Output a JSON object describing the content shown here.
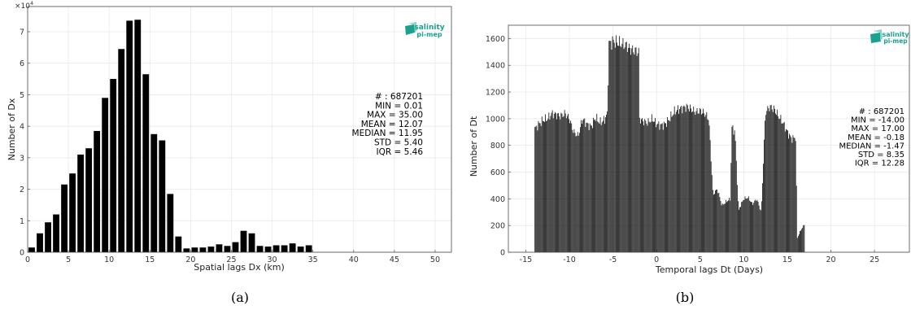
{
  "chart_data": [
    {
      "type": "bar",
      "panel_caption": "(a)",
      "xlabel": "Spatial lags Dx (km)",
      "ylabel": "Number of Dx",
      "y_multiplier": "×10",
      "y_multiplier_exp": "4",
      "xlim": [
        0,
        52
      ],
      "ylim": [
        0,
        7.8
      ],
      "grid": true,
      "xticks": [
        0,
        5,
        10,
        15,
        20,
        25,
        30,
        35,
        40,
        45,
        50
      ],
      "yticks": [
        0,
        1,
        2,
        3,
        4,
        5,
        6,
        7
      ],
      "x": [
        0.5,
        1.5,
        2.5,
        3.5,
        4.5,
        5.5,
        6.5,
        7.5,
        8.5,
        9.5,
        10.5,
        11.5,
        12.5,
        13.5,
        14.5,
        15.5,
        16.5,
        17.5,
        18.5,
        19.5,
        20.5,
        21.5,
        22.5,
        23.5,
        24.5,
        25.5,
        26.5,
        27.5,
        28.5,
        29.5,
        30.5,
        31.5,
        32.5,
        33.5,
        34.5
      ],
      "values": [
        0.15,
        0.6,
        0.95,
        1.2,
        2.15,
        2.5,
        3.1,
        3.3,
        3.85,
        4.9,
        5.5,
        6.45,
        7.35,
        7.38,
        5.65,
        3.75,
        3.55,
        1.85,
        0.5,
        0.12,
        0.15,
        0.15,
        0.18,
        0.25,
        0.2,
        0.32,
        0.68,
        0.6,
        0.2,
        0.18,
        0.22,
        0.22,
        0.28,
        0.18,
        0.22
      ],
      "stats_lines": [
        "# : 687201",
        "MIN = 0.01",
        "MAX =  35.00",
        "MEAN = 12.07",
        "MEDIAN = 11.95",
        "STD = 5.40",
        "IQR = 5.46"
      ],
      "logo": {
        "line1": "salinity",
        "line2": "pi-mep",
        "color": "#1aa28e"
      }
    },
    {
      "type": "bar",
      "panel_caption": "(b)",
      "xlabel": "Temporal lags Dt (Days)",
      "ylabel": "Number of Dt",
      "xlim": [
        -17,
        29
      ],
      "ylim": [
        0,
        1700
      ],
      "grid": true,
      "xticks": [
        -15,
        -10,
        -5,
        0,
        5,
        10,
        15,
        20,
        25
      ],
      "yticks": [
        0,
        200,
        400,
        600,
        800,
        1000,
        1200,
        1400,
        1600
      ],
      "bin_width_days": 0.1,
      "profile_knots": {
        "x": [
          -14.0,
          -13.5,
          -13.0,
          -12.5,
          -12.0,
          -11.0,
          -10.5,
          -10.0,
          -9.5,
          -9.0,
          -8.5,
          -8.0,
          -7.5,
          -7.0,
          -6.5,
          -6.0,
          -5.6,
          -5.5,
          -5.0,
          -4.5,
          -4.0,
          -3.5,
          -3.0,
          -2.5,
          -2.05,
          -2.0,
          -1.5,
          -1.0,
          -0.5,
          0.0,
          0.5,
          1.0,
          1.5,
          2.0,
          2.5,
          3.0,
          3.5,
          4.0,
          4.5,
          5.0,
          5.5,
          6.0,
          6.5,
          6.6,
          7.0,
          7.5,
          8.0,
          8.5,
          8.6,
          9.0,
          9.4,
          9.5,
          10.0,
          10.5,
          11.0,
          11.5,
          12.0,
          12.5,
          13.0,
          13.5,
          14.0,
          14.5,
          15.0,
          15.5,
          16.0,
          16.1,
          16.5,
          16.9,
          17.0
        ],
        "y": [
          920,
          960,
          990,
          1000,
          1040,
          1020,
          1040,
          1000,
          900,
          870,
          1000,
          960,
          940,
          1010,
          970,
          990,
          1040,
          1560,
          1580,
          1570,
          1560,
          1550,
          1520,
          1510,
          1500,
          1000,
          980,
          970,
          1000,
          960,
          950,
          960,
          1000,
          1050,
          1070,
          1080,
          1090,
          1070,
          1050,
          1060,
          1040,
          1000,
          400,
          450,
          470,
          350,
          380,
          400,
          940,
          900,
          300,
          330,
          400,
          410,
          360,
          400,
          300,
          1050,
          1090,
          1070,
          1020,
          970,
          900,
          850,
          860,
          100,
          160,
          200,
          220
        ]
      },
      "stats_lines": [
        "# : 687201",
        "MIN = -14.00",
        "MAX =  17.00",
        "MEAN = -0.18",
        "MEDIAN = -1.47",
        "STD = 8.35",
        "IQR = 12.28"
      ],
      "logo": {
        "line1": "salinity",
        "line2": "pi-mep",
        "color": "#1aa28e"
      }
    }
  ]
}
